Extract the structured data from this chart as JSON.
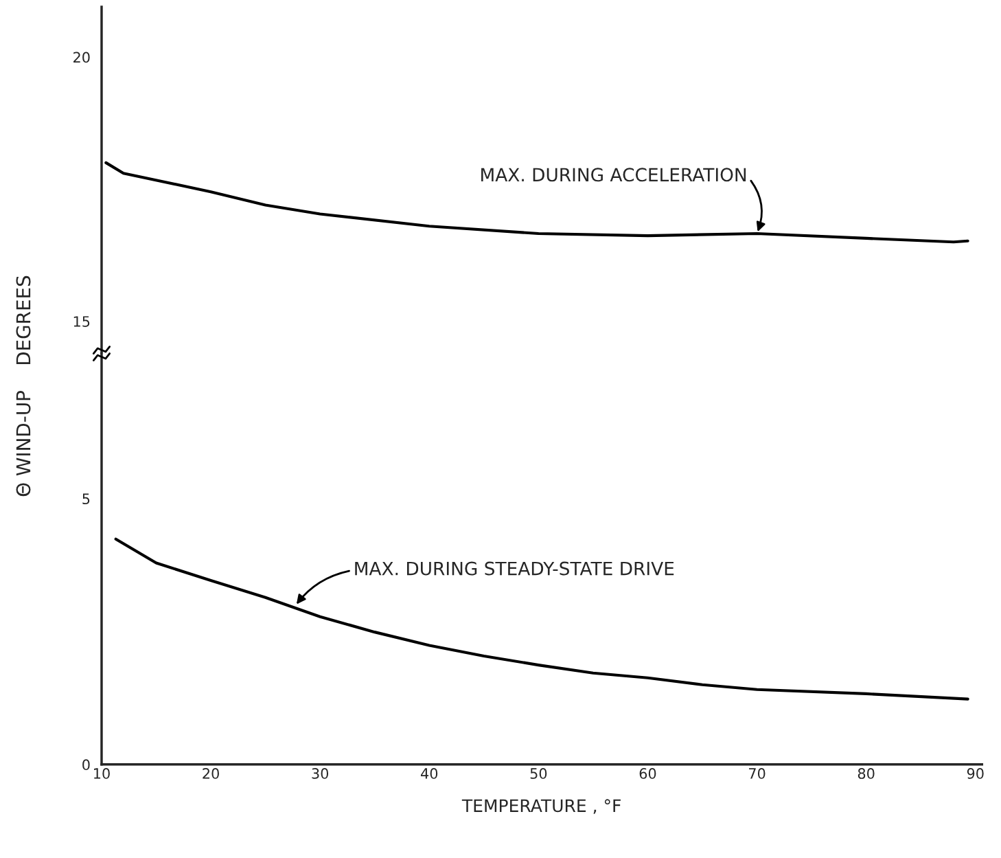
{
  "chart_data": [
    {
      "type": "line",
      "ylabel": "Θ WIND-UP    DEGREES",
      "xlim": [
        10,
        90.6
      ],
      "ylim": [
        14.39,
        20.95
      ],
      "yticks": [
        15,
        20
      ],
      "tick_labels": "y",
      "grid": false,
      "legend": false,
      "series": [
        {
          "color": "#000000",
          "x": [
            10.4,
            12,
            20,
            25,
            30,
            40,
            50,
            60,
            70,
            80,
            88,
            89.3
          ],
          "values": [
            18.0,
            17.8,
            17.45,
            17.2,
            17.03,
            16.8,
            16.66,
            16.62,
            16.66,
            16.57,
            16.5,
            16.52
          ]
        }
      ],
      "annotations": [
        {
          "text": "MAX. DURING ACCELERATION",
          "x": 70,
          "y": 16.66
        }
      ]
    },
    {
      "type": "line",
      "xlabel": "TEMPERATURE , °F",
      "xlim": [
        10,
        90.6
      ],
      "ylim": [
        0,
        7.73
      ],
      "xticks": [
        10,
        20,
        30,
        40,
        50,
        60,
        70,
        80,
        90
      ],
      "yticks": [
        0,
        5
      ],
      "grid": false,
      "legend": false,
      "series": [
        {
          "color": "#000000",
          "x": [
            11.3,
            15,
            20,
            25,
            30,
            35,
            40,
            45,
            50,
            55,
            60,
            65,
            70,
            80,
            89.3
          ],
          "values": [
            4.24,
            3.79,
            3.46,
            3.14,
            2.78,
            2.49,
            2.24,
            2.04,
            1.87,
            1.72,
            1.63,
            1.5,
            1.41,
            1.33,
            1.23
          ]
        }
      ],
      "annotations": [
        "MAX. DURING STEADY-STATE DRIVE"
      ]
    }
  ]
}
